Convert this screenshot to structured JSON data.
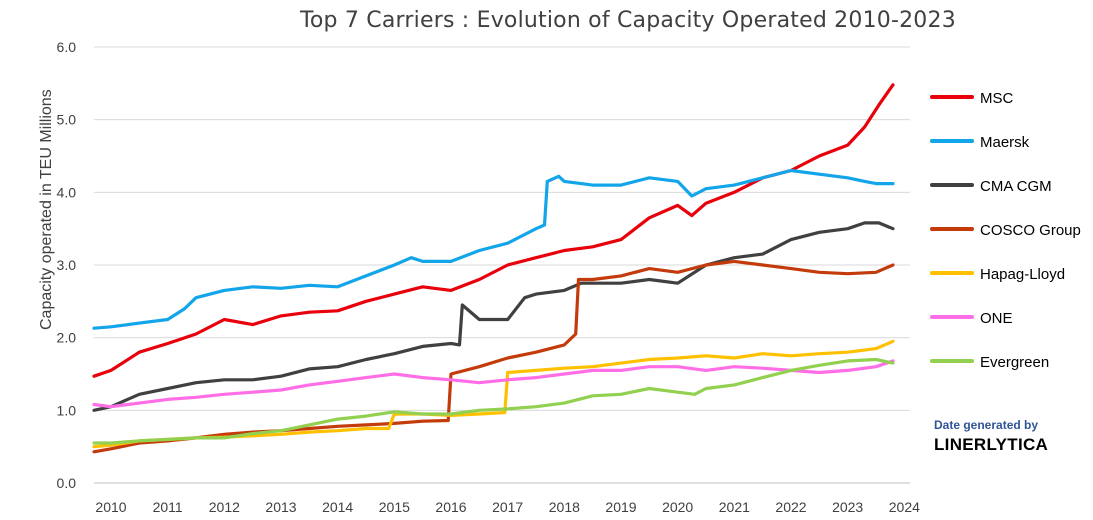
{
  "title": "Top 7 Carriers : Evolution of Capacity Operated 2010-2023",
  "footer": {
    "generated": "Date generated by",
    "brand": "LINERLYTICA"
  },
  "chart_data": {
    "type": "line",
    "title": "Top 7 Carriers : Evolution of Capacity Operated 2010-2023",
    "ylabel": "Capacity operated in TEU Millions",
    "xlabel": "",
    "ylim": [
      0,
      6
    ],
    "xlim": [
      2009.7,
      2024.1
    ],
    "y_ticks": [
      "0.0",
      "1.0",
      "2.0",
      "3.0",
      "4.0",
      "5.0",
      "6.0"
    ],
    "x_ticks": [
      "2010",
      "2011",
      "2012",
      "2013",
      "2014",
      "2015",
      "2016",
      "2017",
      "2018",
      "2019",
      "2020",
      "2021",
      "2022",
      "2023",
      "2024"
    ],
    "grid": "horizontal",
    "legend": "right",
    "series": [
      {
        "name": "MSC",
        "color": "#e8000b",
        "x": [
          2009.7,
          2010.0,
          2010.5,
          2011.0,
          2011.5,
          2012.0,
          2012.5,
          2013.0,
          2013.5,
          2014.0,
          2014.5,
          2015.0,
          2015.5,
          2016.0,
          2016.5,
          2017.0,
          2017.5,
          2018.0,
          2018.5,
          2019.0,
          2019.5,
          2020.0,
          2020.25,
          2020.5,
          2021.0,
          2021.5,
          2022.0,
          2022.5,
          2023.0,
          2023.3,
          2023.55,
          2023.8
        ],
        "values": [
          1.47,
          1.55,
          1.8,
          1.92,
          2.05,
          2.25,
          2.18,
          2.3,
          2.35,
          2.37,
          2.5,
          2.6,
          2.7,
          2.65,
          2.8,
          3.0,
          3.1,
          3.2,
          3.25,
          3.35,
          3.65,
          3.82,
          3.68,
          3.85,
          4.0,
          4.2,
          4.3,
          4.5,
          4.65,
          4.9,
          5.2,
          5.48
        ]
      },
      {
        "name": "Maersk",
        "color": "#12a5ea",
        "x": [
          2009.7,
          2010.0,
          2010.5,
          2011.0,
          2011.3,
          2011.5,
          2012.0,
          2012.5,
          2013.0,
          2013.5,
          2014.0,
          2014.5,
          2015.0,
          2015.3,
          2015.5,
          2016.0,
          2016.5,
          2017.0,
          2017.5,
          2017.65,
          2017.7,
          2017.9,
          2018.0,
          2018.5,
          2019.0,
          2019.5,
          2020.0,
          2020.25,
          2020.5,
          2021.0,
          2021.5,
          2022.0,
          2022.5,
          2023.0,
          2023.3,
          2023.5,
          2023.8
        ],
        "values": [
          2.13,
          2.15,
          2.2,
          2.25,
          2.4,
          2.55,
          2.65,
          2.7,
          2.68,
          2.72,
          2.7,
          2.85,
          3.0,
          3.1,
          3.05,
          3.05,
          3.2,
          3.3,
          3.5,
          3.55,
          4.15,
          4.22,
          4.15,
          4.1,
          4.1,
          4.2,
          4.15,
          3.95,
          4.05,
          4.1,
          4.2,
          4.3,
          4.25,
          4.2,
          4.15,
          4.12,
          4.12
        ]
      },
      {
        "name": "CMA CGM",
        "color": "#404040",
        "x": [
          2009.7,
          2010.0,
          2010.5,
          2011.0,
          2011.5,
          2012.0,
          2012.5,
          2013.0,
          2013.5,
          2014.0,
          2014.5,
          2015.0,
          2015.5,
          2016.0,
          2016.15,
          2016.2,
          2016.5,
          2017.0,
          2017.3,
          2017.5,
          2018.0,
          2018.3,
          2018.5,
          2019.0,
          2019.5,
          2020.0,
          2020.5,
          2021.0,
          2021.5,
          2022.0,
          2022.5,
          2023.0,
          2023.3,
          2023.55,
          2023.8
        ],
        "values": [
          1.0,
          1.05,
          1.22,
          1.3,
          1.38,
          1.42,
          1.42,
          1.47,
          1.57,
          1.6,
          1.7,
          1.78,
          1.88,
          1.92,
          1.9,
          2.45,
          2.25,
          2.25,
          2.55,
          2.6,
          2.65,
          2.75,
          2.75,
          2.75,
          2.8,
          2.75,
          3.0,
          3.1,
          3.15,
          3.35,
          3.45,
          3.5,
          3.58,
          3.58,
          3.5
        ]
      },
      {
        "name": "COSCO Group",
        "color": "#c43b0b",
        "x": [
          2009.7,
          2010.0,
          2010.5,
          2011.0,
          2011.5,
          2012.0,
          2012.5,
          2013.0,
          2013.5,
          2014.0,
          2014.5,
          2015.0,
          2015.5,
          2015.95,
          2016.0,
          2016.5,
          2017.0,
          2017.5,
          2018.0,
          2018.2,
          2018.25,
          2018.5,
          2019.0,
          2019.5,
          2020.0,
          2020.5,
          2021.0,
          2021.5,
          2022.0,
          2022.5,
          2023.0,
          2023.5,
          2023.8
        ],
        "values": [
          0.43,
          0.47,
          0.55,
          0.58,
          0.62,
          0.67,
          0.7,
          0.72,
          0.75,
          0.78,
          0.8,
          0.82,
          0.85,
          0.86,
          1.5,
          1.6,
          1.72,
          1.8,
          1.9,
          2.05,
          2.8,
          2.8,
          2.85,
          2.95,
          2.9,
          3.0,
          3.05,
          3.0,
          2.95,
          2.9,
          2.88,
          2.9,
          3.0
        ]
      },
      {
        "name": "Hapag-Lloyd",
        "color": "#ffc000",
        "x": [
          2009.7,
          2010.0,
          2010.5,
          2011.0,
          2011.5,
          2012.0,
          2012.5,
          2013.0,
          2013.5,
          2014.0,
          2014.5,
          2014.9,
          2015.0,
          2015.5,
          2016.0,
          2016.5,
          2016.95,
          2017.0,
          2017.5,
          2018.0,
          2018.5,
          2019.0,
          2019.5,
          2020.0,
          2020.5,
          2021.0,
          2021.5,
          2022.0,
          2022.5,
          2023.0,
          2023.5,
          2023.8
        ],
        "values": [
          0.5,
          0.52,
          0.58,
          0.6,
          0.62,
          0.63,
          0.65,
          0.67,
          0.7,
          0.72,
          0.75,
          0.75,
          0.95,
          0.95,
          0.93,
          0.95,
          0.97,
          1.52,
          1.55,
          1.58,
          1.6,
          1.65,
          1.7,
          1.72,
          1.75,
          1.72,
          1.78,
          1.75,
          1.78,
          1.8,
          1.85,
          1.95
        ]
      },
      {
        "name": "ONE",
        "color": "#ff6ee6",
        "x": [
          2009.7,
          2010.0,
          2010.5,
          2011.0,
          2011.5,
          2012.0,
          2012.5,
          2013.0,
          2013.5,
          2014.0,
          2014.5,
          2015.0,
          2015.5,
          2016.0,
          2016.5,
          2017.0,
          2017.5,
          2018.0,
          2018.5,
          2019.0,
          2019.5,
          2020.0,
          2020.5,
          2021.0,
          2021.5,
          2022.0,
          2022.5,
          2023.0,
          2023.5,
          2023.8
        ],
        "values": [
          1.08,
          1.05,
          1.1,
          1.15,
          1.18,
          1.22,
          1.25,
          1.28,
          1.35,
          1.4,
          1.45,
          1.5,
          1.45,
          1.42,
          1.38,
          1.42,
          1.45,
          1.5,
          1.55,
          1.55,
          1.6,
          1.6,
          1.55,
          1.6,
          1.58,
          1.55,
          1.52,
          1.55,
          1.6,
          1.68
        ]
      },
      {
        "name": "Evergreen",
        "color": "#92d050",
        "x": [
          2009.7,
          2010.0,
          2010.5,
          2011.0,
          2011.5,
          2012.0,
          2012.5,
          2013.0,
          2013.5,
          2014.0,
          2014.5,
          2015.0,
          2015.5,
          2016.0,
          2016.5,
          2017.0,
          2017.5,
          2018.0,
          2018.5,
          2019.0,
          2019.5,
          2020.0,
          2020.3,
          2020.5,
          2021.0,
          2021.5,
          2022.0,
          2022.5,
          2023.0,
          2023.5,
          2023.8
        ],
        "values": [
          0.55,
          0.55,
          0.58,
          0.6,
          0.62,
          0.62,
          0.68,
          0.72,
          0.8,
          0.88,
          0.92,
          0.98,
          0.95,
          0.95,
          1.0,
          1.02,
          1.05,
          1.1,
          1.2,
          1.22,
          1.3,
          1.25,
          1.22,
          1.3,
          1.35,
          1.45,
          1.55,
          1.62,
          1.68,
          1.7,
          1.65
        ]
      }
    ]
  }
}
